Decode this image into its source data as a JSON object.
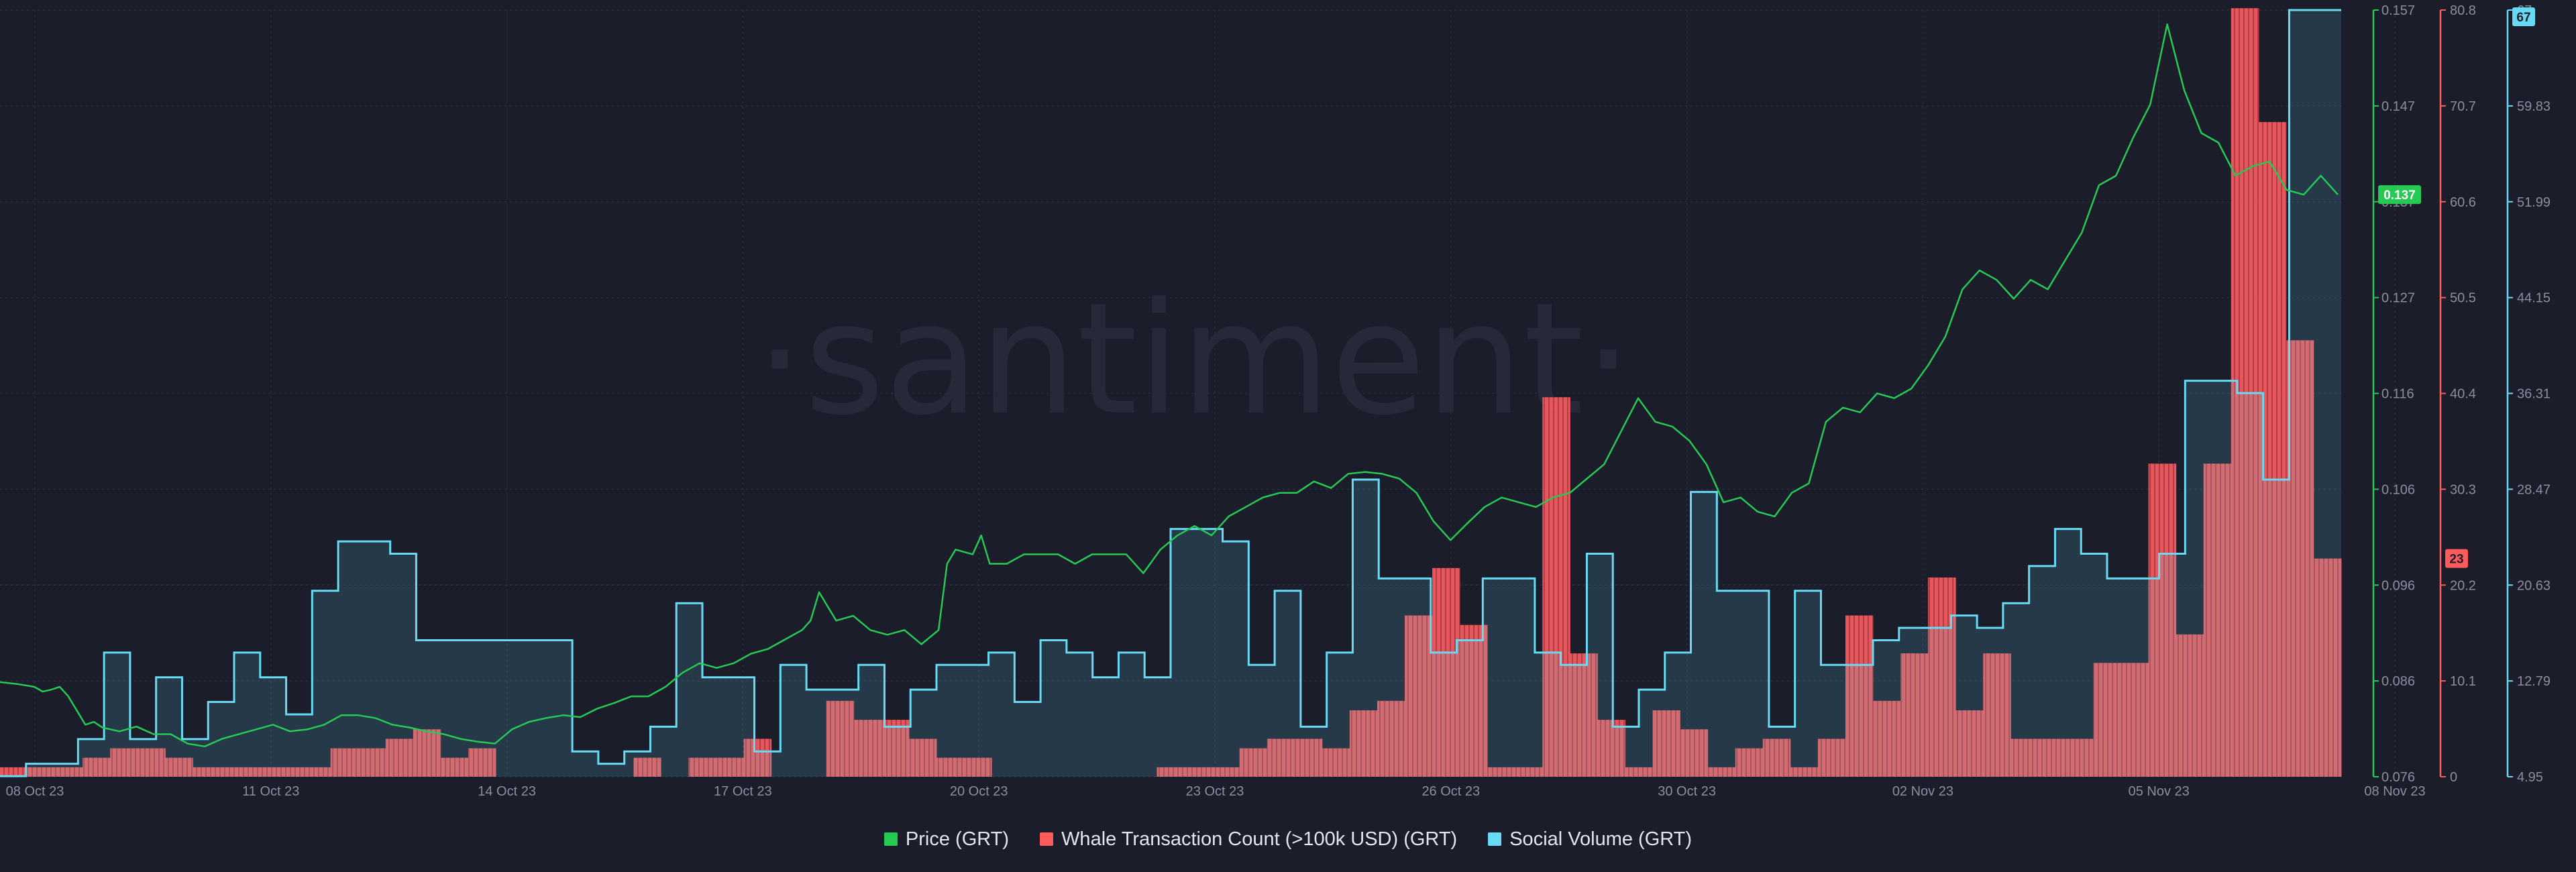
{
  "watermark": "·santiment·",
  "legend": [
    {
      "label": "Price (GRT)",
      "color": "#26c953"
    },
    {
      "label": "Whale Transaction Count (>100k USD) (GRT)",
      "color": "#ff5b5b"
    },
    {
      "label": "Social Volume (GRT)",
      "color": "#68dbf4"
    }
  ],
  "chart_data": {
    "type": "line",
    "x_tick_labels": [
      "08 Oct 23",
      "11 Oct 23",
      "14 Oct 23",
      "17 Oct 23",
      "20 Oct 23",
      "23 Oct 23",
      "26 Oct 23",
      "30 Oct 23",
      "02 Nov 23",
      "05 Nov 23",
      "08 Nov 23"
    ],
    "axes": {
      "price": {
        "ticks": [
          "0.157",
          "0.147",
          "0.137",
          "0.127",
          "0.116",
          "0.106",
          "0.096",
          "0.086",
          "0.076"
        ],
        "range": [
          0.076,
          0.157
        ],
        "current_label": "0.137",
        "color": "#26c953"
      },
      "whale": {
        "ticks": [
          "80.8",
          "70.7",
          "60.6",
          "50.5",
          "40.4",
          "30.3",
          "20.2",
          "10.1",
          "0"
        ],
        "range": [
          0,
          80.8
        ],
        "current_label": "23",
        "color": "#ff5b5b"
      },
      "social": {
        "ticks": [
          "67",
          "59.83",
          "51.99",
          "44.15",
          "36.31",
          "28.47",
          "20.63",
          "12.79",
          "4.95"
        ],
        "range": [
          4.95,
          67
        ],
        "current_label": "67",
        "color": "#68dbf4"
      }
    },
    "series": [
      {
        "name": "Whale Transaction Count (>100k USD) (GRT)",
        "kind": "bar",
        "axis": "whale",
        "values": [
          1,
          1,
          1,
          2,
          3,
          3,
          2,
          1,
          1,
          1,
          1,
          1,
          3,
          3,
          4,
          5,
          2,
          3,
          0,
          0,
          0,
          0,
          0,
          2,
          0,
          2,
          2,
          4,
          0,
          0,
          8,
          6,
          6,
          4,
          2,
          2,
          0,
          0,
          0,
          0,
          0,
          0,
          1,
          1,
          1,
          3,
          4,
          4,
          3,
          7,
          8,
          17,
          22,
          16,
          1,
          1,
          40,
          13,
          6,
          1,
          7,
          5,
          1,
          3,
          4,
          1,
          4,
          17,
          8,
          13,
          21,
          7,
          13,
          4,
          4,
          4,
          12,
          12,
          33,
          15,
          33,
          81,
          69,
          46,
          23
        ]
      },
      {
        "name": "Social Volume (GRT)",
        "kind": "step",
        "axis": "social",
        "values": [
          5,
          6,
          6,
          8,
          15,
          8,
          13,
          8,
          11,
          15,
          13,
          10,
          20,
          24,
          24,
          23,
          16,
          16,
          16,
          16,
          16,
          16,
          7,
          6,
          7,
          9,
          19,
          13,
          13,
          7,
          14,
          12,
          12,
          14,
          9,
          12,
          14,
          14,
          15,
          11,
          16,
          15,
          13,
          15,
          13,
          25,
          25,
          24,
          14,
          20,
          9,
          15,
          29,
          21,
          21,
          15,
          16,
          21,
          21,
          15,
          14,
          23,
          9,
          12,
          15,
          28,
          20,
          20,
          9,
          20,
          14,
          14,
          16,
          17,
          17,
          18,
          17,
          19,
          22,
          25,
          23,
          21,
          21,
          23,
          37,
          37,
          36,
          29,
          67,
          67
        ]
      },
      {
        "name": "Price (GRT)",
        "kind": "line",
        "axis": "price",
        "points": [
          [
            0,
            0.086
          ],
          [
            1,
            0.0858
          ],
          [
            2,
            0.0855
          ],
          [
            2.5,
            0.085
          ],
          [
            3,
            0.0852
          ],
          [
            3.5,
            0.0855
          ],
          [
            4,
            0.0845
          ],
          [
            4.5,
            0.083
          ],
          [
            5,
            0.0815
          ],
          [
            5.5,
            0.0818
          ],
          [
            6,
            0.0812
          ],
          [
            7,
            0.0808
          ],
          [
            8,
            0.0813
          ],
          [
            9,
            0.0805
          ],
          [
            10,
            0.0805
          ],
          [
            11,
            0.0795
          ],
          [
            12,
            0.0792
          ],
          [
            13,
            0.08
          ],
          [
            14,
            0.0805
          ],
          [
            15,
            0.081
          ],
          [
            16,
            0.0815
          ],
          [
            17,
            0.0808
          ],
          [
            18,
            0.081
          ],
          [
            19,
            0.0815
          ],
          [
            20,
            0.0825
          ],
          [
            21,
            0.0825
          ],
          [
            22,
            0.0822
          ],
          [
            23,
            0.0815
          ],
          [
            24,
            0.0812
          ],
          [
            25,
            0.0808
          ],
          [
            26,
            0.0805
          ],
          [
            27,
            0.08
          ],
          [
            28,
            0.0797
          ],
          [
            29,
            0.0795
          ],
          [
            30,
            0.081
          ],
          [
            31,
            0.0818
          ],
          [
            32,
            0.0822
          ],
          [
            33,
            0.0825
          ],
          [
            34,
            0.0823
          ],
          [
            35,
            0.0832
          ],
          [
            36,
            0.0838
          ],
          [
            37,
            0.0845
          ],
          [
            38,
            0.0845
          ],
          [
            39,
            0.0855
          ],
          [
            40,
            0.087
          ],
          [
            41,
            0.088
          ],
          [
            42,
            0.0875
          ],
          [
            43,
            0.088
          ],
          [
            44,
            0.089
          ],
          [
            45,
            0.0895
          ],
          [
            46,
            0.0905
          ],
          [
            47,
            0.0915
          ],
          [
            47.5,
            0.0925
          ],
          [
            48,
            0.0955
          ],
          [
            48.5,
            0.094
          ],
          [
            49,
            0.0925
          ],
          [
            50,
            0.093
          ],
          [
            51,
            0.0915
          ],
          [
            52,
            0.091
          ],
          [
            53,
            0.0915
          ],
          [
            54,
            0.09
          ],
          [
            55,
            0.0915
          ],
          [
            55.5,
            0.0985
          ],
          [
            56,
            0.1
          ],
          [
            57,
            0.0995
          ],
          [
            57.5,
            0.1015
          ],
          [
            58,
            0.0985
          ],
          [
            59,
            0.0985
          ],
          [
            60,
            0.0995
          ],
          [
            61,
            0.0995
          ],
          [
            62,
            0.0995
          ],
          [
            63,
            0.0985
          ],
          [
            64,
            0.0995
          ],
          [
            65,
            0.0995
          ],
          [
            66,
            0.0995
          ],
          [
            67,
            0.0975
          ],
          [
            68,
            0.1
          ],
          [
            69,
            0.1015
          ],
          [
            70,
            0.1025
          ],
          [
            71,
            0.1015
          ],
          [
            72,
            0.1035
          ],
          [
            73,
            0.1045
          ],
          [
            74,
            0.1055
          ],
          [
            75,
            0.106
          ],
          [
            76,
            0.106
          ],
          [
            77,
            0.1072
          ],
          [
            78,
            0.1065
          ],
          [
            79,
            0.108
          ],
          [
            80,
            0.1082
          ],
          [
            81,
            0.108
          ],
          [
            82,
            0.1075
          ],
          [
            83,
            0.106
          ],
          [
            84,
            0.103
          ],
          [
            85,
            0.101
          ],
          [
            86,
            0.1028
          ],
          [
            87,
            0.1045
          ],
          [
            88,
            0.1055
          ],
          [
            89,
            0.105
          ],
          [
            90,
            0.1045
          ],
          [
            91,
            0.1055
          ],
          [
            92,
            0.106
          ],
          [
            93,
            0.1075
          ],
          [
            94,
            0.109
          ],
          [
            95,
            0.1125
          ],
          [
            96,
            0.116
          ],
          [
            97,
            0.1135
          ],
          [
            98,
            0.113
          ],
          [
            99,
            0.1115
          ],
          [
            100,
            0.109
          ],
          [
            101,
            0.105
          ],
          [
            102,
            0.1055
          ],
          [
            103,
            0.104
          ],
          [
            104,
            0.1035
          ],
          [
            105,
            0.106
          ],
          [
            106,
            0.107
          ],
          [
            107,
            0.1135
          ],
          [
            108,
            0.115
          ],
          [
            109,
            0.1145
          ],
          [
            110,
            0.1165
          ],
          [
            111,
            0.116
          ],
          [
            112,
            0.117
          ],
          [
            113,
            0.1195
          ],
          [
            114,
            0.1225
          ],
          [
            115,
            0.1275
          ],
          [
            116,
            0.1295
          ],
          [
            117,
            0.1285
          ],
          [
            118,
            0.1265
          ],
          [
            119,
            0.1285
          ],
          [
            120,
            0.1275
          ],
          [
            121,
            0.1305
          ],
          [
            122,
            0.1335
          ],
          [
            123,
            0.1385
          ],
          [
            124,
            0.1395
          ],
          [
            125,
            0.1435
          ],
          [
            126,
            0.147
          ],
          [
            127,
            0.1555
          ],
          [
            128,
            0.1485
          ],
          [
            129,
            0.144
          ],
          [
            130,
            0.143
          ],
          [
            131,
            0.1395
          ],
          [
            132,
            0.1405
          ],
          [
            133,
            0.141
          ],
          [
            134,
            0.138
          ],
          [
            135,
            0.1375
          ],
          [
            136,
            0.1395
          ],
          [
            137,
            0.1375
          ]
        ]
      }
    ]
  }
}
